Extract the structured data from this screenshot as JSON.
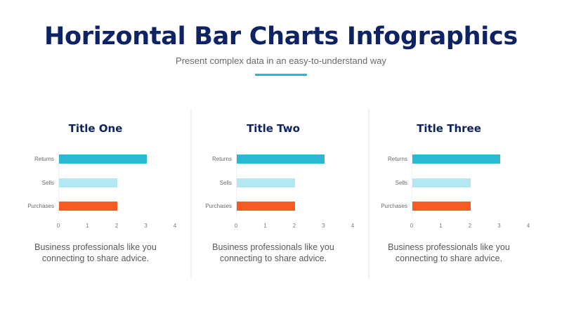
{
  "header": {
    "title": "Horizontal Bar Charts Infographics",
    "subtitle": "Present complex data in an easy-to-understand way",
    "accent_color": "#2bb8cc"
  },
  "panels": [
    {
      "title": "Title One",
      "description_line1": "Business professionals like you",
      "description_line2": "connecting to share advice."
    },
    {
      "title": "Title Two",
      "description_line1": "Business professionals like you",
      "description_line2": "connecting to share advice."
    },
    {
      "title": "Title Three",
      "description_line1": "Business professionals like you",
      "description_line2": "connecting to share advice."
    }
  ],
  "colors": {
    "returns": "#29b9d2",
    "sells": "#b3e8f2",
    "purchases": "#f85a23",
    "title": "#0d2363"
  },
  "chart_data": [
    {
      "type": "bar",
      "orientation": "horizontal",
      "title": "Title One",
      "categories": [
        "Returns",
        "Sells",
        "Purchases"
      ],
      "values": [
        3,
        2,
        2
      ],
      "x_ticks": [
        "0",
        "1",
        "2",
        "3",
        "4"
      ],
      "xlim": [
        0,
        4
      ],
      "xlabel": "",
      "ylabel": "",
      "grid": false,
      "legend": false
    },
    {
      "type": "bar",
      "orientation": "horizontal",
      "title": "Title Two",
      "categories": [
        "Returns",
        "Sells",
        "Purchases"
      ],
      "values": [
        3,
        2,
        2
      ],
      "x_ticks": [
        "0",
        "1",
        "2",
        "3",
        "4"
      ],
      "xlim": [
        0,
        4
      ],
      "xlabel": "",
      "ylabel": "",
      "grid": false,
      "legend": false
    },
    {
      "type": "bar",
      "orientation": "horizontal",
      "title": "Title Three",
      "categories": [
        "Returns",
        "Sells",
        "Purchases"
      ],
      "values": [
        3,
        2,
        2
      ],
      "x_ticks": [
        "0",
        "1",
        "2",
        "3",
        "4"
      ],
      "xlim": [
        0,
        4
      ],
      "xlabel": "",
      "ylabel": "",
      "grid": false,
      "legend": false
    }
  ]
}
